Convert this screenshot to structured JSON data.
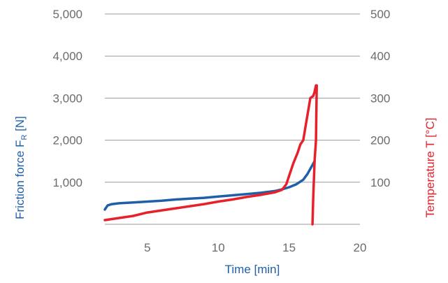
{
  "chart_data": {
    "type": "line",
    "title": "",
    "xlabel": "Time [min]",
    "ylabel_left": "Friction force F",
    "ylabel_left_subscript": "R",
    "ylabel_left_unit": " [N]",
    "ylabel_right": "Temperature T [°C]",
    "xlim": [
      2,
      20
    ],
    "ylim_left": [
      0,
      5000
    ],
    "ylim_right": [
      0,
      500
    ],
    "x_ticks": [
      "5",
      "10",
      "15",
      "20"
    ],
    "x_tick_values": [
      5,
      10,
      15,
      20
    ],
    "y_left_ticks": [
      "1,000",
      "2,000",
      "3,000",
      "4,000",
      "5,000"
    ],
    "y_left_tick_values": [
      1000,
      2000,
      3000,
      4000,
      5000
    ],
    "y_right_ticks": [
      "100",
      "200",
      "300",
      "400",
      "500"
    ],
    "y_right_tick_values": [
      100,
      200,
      300,
      400,
      500
    ],
    "grid": "horizontal",
    "legend": "none",
    "series": [
      {
        "axis": "left",
        "color": "#1f5fa8",
        "x": [
          2.0,
          2.2,
          2.5,
          3.0,
          4.0,
          5.0,
          6.0,
          7.0,
          8.0,
          9.0,
          10.0,
          11.0,
          12.0,
          13.0,
          13.5,
          14.0,
          14.5,
          15.0,
          15.5,
          16.0,
          16.3,
          16.6,
          16.8
        ],
        "y": [
          350,
          450,
          480,
          500,
          520,
          540,
          560,
          590,
          610,
          630,
          660,
          690,
          720,
          750,
          770,
          790,
          830,
          880,
          950,
          1060,
          1200,
          1380,
          1500
        ]
      },
      {
        "axis": "right",
        "color": "#e8202a",
        "x": [
          2.0,
          3.0,
          4.0,
          5.0,
          6.0,
          7.0,
          8.0,
          9.0,
          10.0,
          11.0,
          12.0,
          13.0,
          14.0,
          14.5,
          14.8,
          15.0,
          15.3,
          15.6,
          15.8,
          16.0,
          16.2,
          16.4,
          16.5,
          16.7,
          16.8,
          16.9,
          16.95,
          16.9,
          16.8,
          16.7,
          16.65
        ],
        "y": [
          10,
          15,
          20,
          28,
          33,
          38,
          43,
          48,
          54,
          59,
          65,
          70,
          76,
          82,
          95,
          115,
          145,
          170,
          190,
          200,
          240,
          280,
          300,
          305,
          315,
          330,
          330,
          200,
          150,
          60,
          0
        ]
      }
    ]
  }
}
